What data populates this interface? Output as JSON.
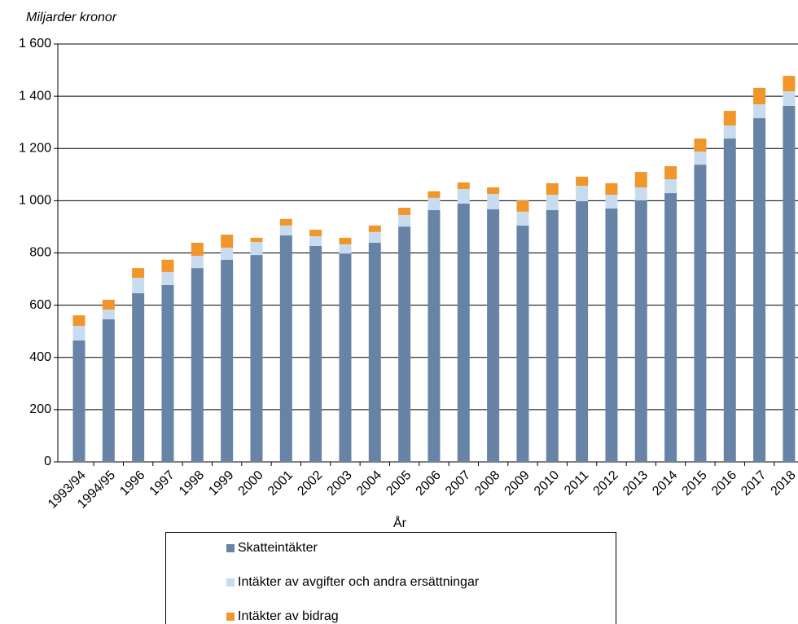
{
  "chart_data": {
    "type": "bar",
    "stacked": true,
    "y_label": "Miljarder kronor",
    "x_label": "År",
    "categories": [
      "1993/94",
      "1994/95",
      "1996",
      "1997",
      "1998",
      "1999",
      "2000",
      "2001",
      "2002",
      "2003",
      "2004",
      "2005",
      "2006",
      "2007",
      "2008",
      "2009",
      "2010",
      "2011",
      "2012",
      "2013",
      "2014",
      "2015",
      "2016",
      "2017",
      "2018"
    ],
    "series": [
      {
        "name": "Skatteintäkter",
        "color": "#6783a5",
        "values": [
          465,
          546,
          646,
          677,
          742,
          774,
          792,
          867,
          827,
          798,
          839,
          901,
          964,
          989,
          967,
          905,
          964,
          998,
          970,
          1001,
          1029,
          1138,
          1238,
          1316,
          1363
        ]
      },
      {
        "name": "Intäkter av avgifter och andra ersättningar",
        "color": "#c9dcef",
        "values": [
          56,
          37,
          59,
          50,
          47,
          46,
          50,
          38,
          37,
          35,
          41,
          44,
          47,
          56,
          59,
          53,
          59,
          59,
          53,
          50,
          53,
          50,
          50,
          53,
          56
        ]
      },
      {
        "name": "Intäkter av bidrag",
        "color": "#f0962a",
        "values": [
          40,
          38,
          37,
          47,
          50,
          50,
          16,
          25,
          25,
          25,
          25,
          28,
          25,
          25,
          25,
          43,
          44,
          35,
          44,
          59,
          50,
          50,
          56,
          63,
          59
        ]
      }
    ],
    "ylim": [
      0,
      1600
    ],
    "yticks": [
      0,
      200,
      400,
      600,
      800,
      {
        "value": 1000,
        "label": "1 000"
      },
      {
        "value": 1200,
        "label": "1 200"
      },
      {
        "value": 1400,
        "label": "1 400"
      },
      {
        "value": 1600,
        "label": "1 600"
      }
    ],
    "grid": true,
    "legend": "bottom"
  }
}
